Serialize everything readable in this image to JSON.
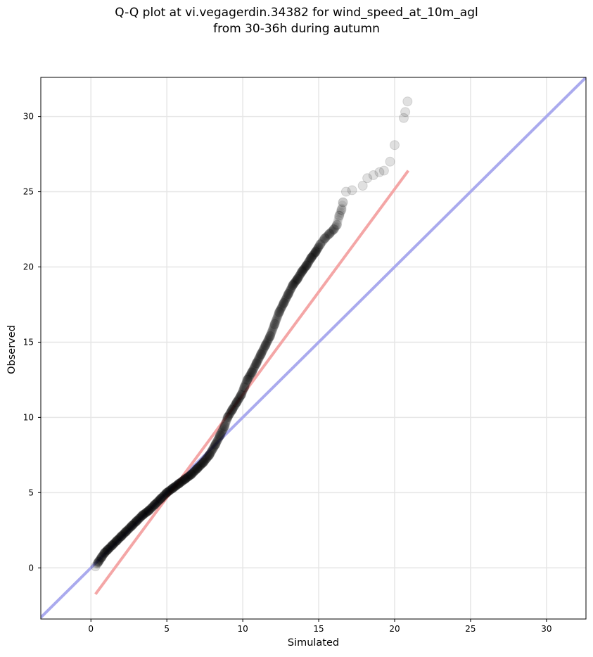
{
  "chart_data": {
    "type": "scatter",
    "title": "Q-Q plot at vi.vegagerdin.34382 for wind_speed_at_10m_agl",
    "subtitle": "from 30-36h during autumn",
    "xlabel": "Simulated",
    "ylabel": "Observed",
    "xlim": [
      -3.3,
      32.6
    ],
    "ylim": [
      -3.4,
      32.6
    ],
    "xticks": [
      0,
      5,
      10,
      15,
      20,
      25,
      30
    ],
    "yticks": [
      0,
      5,
      10,
      15,
      20,
      25,
      30
    ],
    "grid": true,
    "colors": {
      "points": "#000000",
      "identity_line": "#aaaaee",
      "fit_line": "#f4a6a6"
    },
    "identity_line": {
      "x": [
        -3.3,
        32.6
      ],
      "y": [
        -3.3,
        32.6
      ]
    },
    "fit_line": {
      "x": [
        0.3,
        20.9
      ],
      "y": [
        -1.75,
        26.4
      ]
    },
    "series": [
      {
        "x": [
          0.3,
          0.5,
          0.7,
          0.9,
          1.1,
          1.4,
          1.7,
          2.0,
          2.3,
          2.7,
          3.0,
          3.4,
          3.8,
          4.2,
          4.6,
          5.0,
          5.4,
          5.8,
          6.2,
          6.6,
          7.0,
          7.4,
          7.8,
          8.2,
          8.5,
          8.8,
          9.0,
          9.3,
          9.6,
          9.9,
          10.1,
          10.3,
          10.6,
          10.9,
          11.2,
          11.5,
          11.8,
          12.1,
          12.4,
          12.7,
          13.0,
          13.3,
          13.6,
          13.9,
          14.2,
          14.5,
          14.8,
          15.1,
          15.4,
          15.7,
          16.0,
          16.2,
          16.35,
          16.5,
          16.6,
          16.8,
          17.2,
          17.9,
          18.2,
          18.6,
          19.0,
          19.3,
          19.7,
          20.0,
          20.6,
          20.7,
          20.85
        ],
        "y": [
          0.1,
          0.4,
          0.7,
          1.0,
          1.2,
          1.5,
          1.8,
          2.1,
          2.4,
          2.8,
          3.1,
          3.5,
          3.8,
          4.2,
          4.6,
          5.0,
          5.3,
          5.6,
          5.9,
          6.2,
          6.6,
          7.0,
          7.5,
          8.2,
          8.8,
          9.4,
          10.0,
          10.5,
          11.0,
          11.5,
          12.0,
          12.5,
          13.0,
          13.6,
          14.2,
          14.8,
          15.4,
          16.2,
          17.0,
          17.6,
          18.2,
          18.8,
          19.2,
          19.7,
          20.1,
          20.6,
          21.0,
          21.5,
          21.9,
          22.2,
          22.5,
          22.8,
          23.4,
          23.8,
          24.3,
          25.0,
          25.1,
          25.4,
          25.9,
          26.1,
          26.3,
          26.4,
          27.0,
          28.1,
          29.9,
          30.3,
          31.0
        ]
      }
    ]
  }
}
